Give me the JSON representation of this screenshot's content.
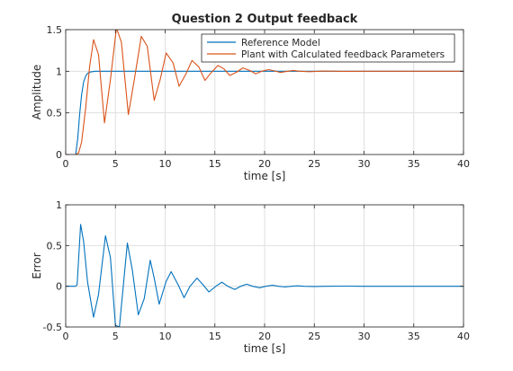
{
  "chart_data": [
    {
      "type": "line",
      "title": "Question 2 Output feedback",
      "xlabel": "time [s]",
      "ylabel": "Amplitude",
      "xlim": [
        0,
        40
      ],
      "ylim": [
        0,
        1.5
      ],
      "xticks": [
        "0",
        "5",
        "10",
        "15",
        "20",
        "25",
        "30",
        "35",
        "40"
      ],
      "yticks": [
        "0",
        "0.5",
        "1",
        "1.5"
      ],
      "grid": true,
      "legend_position": "top-right",
      "series": [
        {
          "name": "Reference Model",
          "color": "#0072BD",
          "x": [
            0,
            1.0,
            1.2,
            1.4,
            1.6,
            1.8,
            2.0,
            2.2,
            2.5,
            3.0,
            4.0,
            40
          ],
          "values": [
            0,
            0,
            0.18,
            0.48,
            0.72,
            0.87,
            0.94,
            0.975,
            0.992,
            1.0,
            1.0,
            1.0
          ]
        },
        {
          "name": "Plant with Calculated feedback Parameters",
          "color": "#D95319",
          "x": [
            0,
            1.0,
            1.3,
            1.6,
            2.0,
            2.4,
            2.8,
            3.3,
            3.9,
            4.5,
            5.1,
            5.6,
            6.3,
            6.9,
            7.6,
            8.2,
            8.9,
            9.5,
            10.1,
            10.8,
            11.4,
            12.1,
            12.7,
            13.4,
            14.0,
            14.6,
            15.3,
            15.9,
            16.5,
            17.2,
            17.8,
            18.5,
            19.1,
            19.7,
            20.4,
            21.0,
            21.6,
            22.3,
            22.9,
            23.5,
            24.5,
            26,
            28,
            30,
            40
          ],
          "values": [
            0,
            0,
            0.02,
            0.15,
            0.55,
            1.05,
            1.38,
            1.2,
            0.38,
            0.9,
            1.52,
            1.35,
            0.48,
            0.9,
            1.42,
            1.3,
            0.65,
            0.9,
            1.22,
            1.1,
            0.82,
            0.97,
            1.13,
            1.05,
            0.89,
            0.98,
            1.07,
            1.03,
            0.95,
            0.99,
            1.04,
            1.01,
            0.97,
            1.0,
            1.02,
            1.005,
            0.985,
            1.0,
            1.01,
            1.0,
            0.995,
            1.003,
            0.999,
            1.0,
            1.0
          ]
        }
      ]
    },
    {
      "type": "line",
      "title": "",
      "xlabel": "time [s]",
      "ylabel": "Error",
      "xlim": [
        0,
        40
      ],
      "ylim": [
        -0.5,
        1
      ],
      "xticks": [
        "0",
        "5",
        "10",
        "15",
        "20",
        "25",
        "30",
        "35",
        "40"
      ],
      "yticks": [
        "-0.5",
        "0",
        "0.5",
        "1"
      ],
      "grid": true,
      "series": [
        {
          "name": "",
          "color": "#0072BD",
          "x": [
            0,
            1.0,
            1.15,
            1.5,
            1.8,
            2.2,
            2.8,
            3.3,
            4.0,
            4.5,
            5.0,
            5.4,
            6.2,
            6.7,
            7.3,
            7.9,
            8.5,
            8.9,
            9.4,
            10.1,
            10.6,
            11.3,
            11.9,
            12.5,
            13.2,
            13.8,
            14.4,
            15.1,
            15.7,
            16.3,
            17.0,
            17.6,
            18.2,
            18.8,
            19.5,
            20.1,
            20.8,
            21.4,
            22.0,
            22.7,
            23.3,
            24.0,
            25,
            26,
            28,
            30,
            40
          ],
          "values": [
            0,
            0,
            0.02,
            0.76,
            0.55,
            0.05,
            -0.38,
            -0.1,
            0.62,
            0.35,
            -0.48,
            -0.5,
            0.53,
            0.2,
            -0.35,
            -0.15,
            0.32,
            0.1,
            -0.22,
            0.06,
            0.18,
            0.02,
            -0.14,
            0.0,
            0.1,
            0.02,
            -0.07,
            0.0,
            0.05,
            0.0,
            -0.04,
            0.0,
            0.025,
            0.0,
            -0.018,
            0.0,
            0.012,
            0.0,
            -0.008,
            0.0,
            0.005,
            0.0,
            -0.003,
            0.0,
            0.002,
            0.0,
            0.0
          ]
        }
      ]
    }
  ]
}
